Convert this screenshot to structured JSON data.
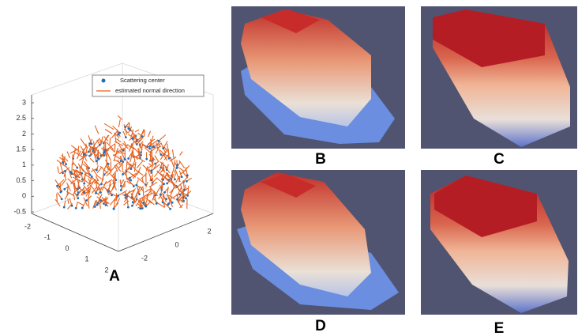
{
  "panels": [
    {
      "label": "A",
      "legend": [
        "Scattering center",
        "estimated normal direction"
      ],
      "z_ticks": [
        3,
        2.5,
        2,
        1.5,
        1,
        0.5,
        0,
        -0.5
      ],
      "x_ticks": [
        -2,
        -1,
        0,
        1,
        2
      ],
      "y_ticks": [
        -2,
        0,
        2
      ]
    },
    {
      "label": "B"
    },
    {
      "label": "C"
    },
    {
      "label": "D"
    },
    {
      "label": "E"
    }
  ]
}
